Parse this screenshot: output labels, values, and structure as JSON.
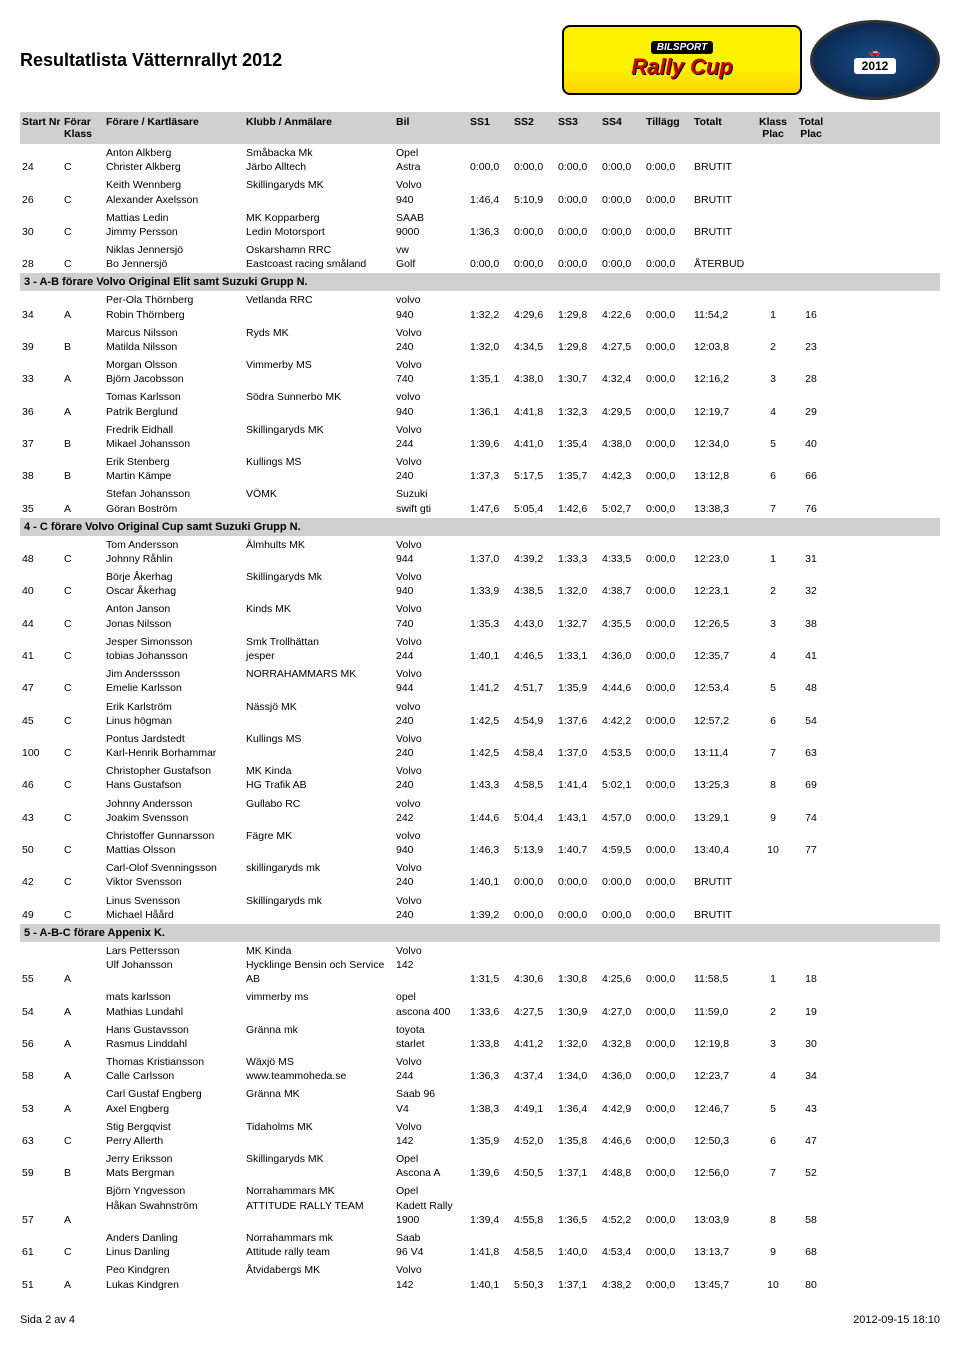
{
  "title": "Resultatlista Vätternrallyt 2012",
  "logo": {
    "top": "BILSPORT",
    "main": "Rally Cup",
    "year": "2012"
  },
  "columns": {
    "start_nr": "Start Nr",
    "forar_klass": "Förar Klass",
    "forare": "Förare / Kartläsare",
    "klubb": "Klubb / Anmälare",
    "bil": "Bil",
    "ss1": "SS1",
    "ss2": "SS2",
    "ss3": "SS3",
    "ss4": "SS4",
    "tillagg": "Tillägg",
    "totalt": "Totalt",
    "klass_plac": "Klass Plac",
    "total_plac": "Total Plac"
  },
  "sections": [
    {
      "header": null,
      "rows": [
        {
          "start": "24",
          "klass": "C",
          "forare1": "Anton Alkberg",
          "forare2": "Christer Alkberg",
          "klubb1": "Småbacka Mk",
          "klubb2": "Järbo  Alltech",
          "bil1": "Opel",
          "bil2": "Astra",
          "ss1": "0:00,0",
          "ss2": "0:00,0",
          "ss3": "0:00,0",
          "ss4": "0:00,0",
          "tillagg": "0:00,0",
          "totalt": "BRUTIT",
          "kp": "",
          "tp": ""
        },
        {
          "start": "26",
          "klass": "C",
          "forare1": "Keith Wennberg",
          "forare2": "Alexander Axelsson",
          "klubb1": "Skillingaryds MK",
          "klubb2": "",
          "bil1": "Volvo",
          "bil2": "940",
          "ss1": "1:46,4",
          "ss2": "5:10,9",
          "ss3": "0:00,0",
          "ss4": "0:00,0",
          "tillagg": "0:00,0",
          "totalt": "BRUTIT",
          "kp": "",
          "tp": ""
        },
        {
          "start": "30",
          "klass": "C",
          "forare1": "Mattias Ledin",
          "forare2": "Jimmy Persson",
          "klubb1": "MK Kopparberg",
          "klubb2": "Ledin Motorsport",
          "bil1": "SAAB",
          "bil2": "9000",
          "ss1": "1:36,3",
          "ss2": "0:00,0",
          "ss3": "0:00,0",
          "ss4": "0:00,0",
          "tillagg": "0:00,0",
          "totalt": "BRUTIT",
          "kp": "",
          "tp": ""
        },
        {
          "start": "28",
          "klass": "C",
          "forare1": "Niklas Jennersjö",
          "forare2": "Bo  Jennersjö",
          "klubb1": "Oskarshamn RRC",
          "klubb2": "Eastcoast racing småland",
          "bil1": "vw",
          "bil2": "Golf",
          "ss1": "0:00,0",
          "ss2": "0:00,0",
          "ss3": "0:00,0",
          "ss4": "0:00,0",
          "tillagg": "0:00,0",
          "totalt": "ÅTERBUD",
          "kp": "",
          "tp": ""
        }
      ]
    },
    {
      "header": "3 - A-B förare Volvo Original Elit samt Suzuki Grupp N.",
      "rows": [
        {
          "start": "34",
          "klass": "A",
          "forare1": "Per-Ola  Thörnberg",
          "forare2": "Robin  Thörnberg",
          "klubb1": "Vetlanda RRC",
          "klubb2": "",
          "bil1": "volvo",
          "bil2": "940",
          "ss1": "1:32,2",
          "ss2": "4:29,6",
          "ss3": "1:29,8",
          "ss4": "4:22,6",
          "tillagg": "0:00,0",
          "totalt": "11:54,2",
          "kp": "1",
          "tp": "16"
        },
        {
          "start": "39",
          "klass": "B",
          "forare1": "Marcus Nilsson",
          "forare2": "Matilda Nilsson",
          "klubb1": "Ryds MK",
          "klubb2": "",
          "bil1": "Volvo",
          "bil2": "240",
          "ss1": "1:32,0",
          "ss2": "4:34,5",
          "ss3": "1:29,8",
          "ss4": "4:27,5",
          "tillagg": "0:00,0",
          "totalt": "12:03,8",
          "kp": "2",
          "tp": "23"
        },
        {
          "start": "33",
          "klass": "A",
          "forare1": "Morgan  Olsson",
          "forare2": "Björn Jacobsson",
          "klubb1": "Vimmerby MS",
          "klubb2": "",
          "bil1": "Volvo",
          "bil2": "740",
          "ss1": "1:35,1",
          "ss2": "4:38,0",
          "ss3": "1:30,7",
          "ss4": "4:32,4",
          "tillagg": "0:00,0",
          "totalt": "12:16,2",
          "kp": "3",
          "tp": "28"
        },
        {
          "start": "36",
          "klass": "A",
          "forare1": "Tomas Karlsson",
          "forare2": "Patrik Berglund",
          "klubb1": "Södra Sunnerbo MK",
          "klubb2": "",
          "bil1": "volvo",
          "bil2": "940",
          "ss1": "1:36,1",
          "ss2": "4:41,8",
          "ss3": "1:32,3",
          "ss4": "4:29,5",
          "tillagg": "0:00,0",
          "totalt": "12:19,7",
          "kp": "4",
          "tp": "29"
        },
        {
          "start": "37",
          "klass": "B",
          "forare1": "Fredrik  Eidhall",
          "forare2": "Mikael Johansson",
          "klubb1": "Skillingaryds MK",
          "klubb2": "",
          "bil1": "Volvo",
          "bil2": "244",
          "ss1": "1:39,6",
          "ss2": "4:41,0",
          "ss3": "1:35,4",
          "ss4": "4:38,0",
          "tillagg": "0:00,0",
          "totalt": "12:34,0",
          "kp": "5",
          "tp": "40"
        },
        {
          "start": "38",
          "klass": "B",
          "forare1": "Erik Stenberg",
          "forare2": "Martin Kämpe",
          "klubb1": "Kullings MS",
          "klubb2": "",
          "bil1": "Volvo",
          "bil2": "240",
          "ss1": "1:37,3",
          "ss2": "5:17,5",
          "ss3": "1:35,7",
          "ss4": "4:42,3",
          "tillagg": "0:00,0",
          "totalt": "13:12,8",
          "kp": "6",
          "tp": "66"
        },
        {
          "start": "35",
          "klass": "A",
          "forare1": "Stefan Johansson",
          "forare2": "Göran Boström",
          "klubb1": "VÖMK",
          "klubb2": "",
          "bil1": "Suzuki",
          "bil2": "swift gti",
          "ss1": "1:47,6",
          "ss2": "5:05,4",
          "ss3": "1:42,6",
          "ss4": "5:02,7",
          "tillagg": "0:00,0",
          "totalt": "13:38,3",
          "kp": "7",
          "tp": "76"
        }
      ]
    },
    {
      "header": "4 - C förare Volvo Original Cup samt Suzuki Grupp N.",
      "rows": [
        {
          "start": "48",
          "klass": "C",
          "forare1": "Tom Andersson",
          "forare2": "Johnny Råhlin",
          "klubb1": "Älmhults MK",
          "klubb2": "",
          "bil1": "Volvo",
          "bil2": "944",
          "ss1": "1:37,0",
          "ss2": "4:39,2",
          "ss3": "1:33,3",
          "ss4": "4:33,5",
          "tillagg": "0:00,0",
          "totalt": "12:23,0",
          "kp": "1",
          "tp": "31"
        },
        {
          "start": "40",
          "klass": "C",
          "forare1": "Börje Åkerhag",
          "forare2": "Oscar Åkerhag",
          "klubb1": "Skillingaryds Mk",
          "klubb2": "",
          "bil1": "Volvo",
          "bil2": "940",
          "ss1": "1:33,9",
          "ss2": "4:38,5",
          "ss3": "1:32,0",
          "ss4": "4:38,7",
          "tillagg": "0:00,0",
          "totalt": "12:23,1",
          "kp": "2",
          "tp": "32"
        },
        {
          "start": "44",
          "klass": "C",
          "forare1": "Anton Janson",
          "forare2": "Jonas Nilsson",
          "klubb1": "Kinds MK",
          "klubb2": "",
          "bil1": "Volvo",
          "bil2": "740",
          "ss1": "1:35,3",
          "ss2": "4:43,0",
          "ss3": "1:32,7",
          "ss4": "4:35,5",
          "tillagg": "0:00,0",
          "totalt": "12:26,5",
          "kp": "3",
          "tp": "38"
        },
        {
          "start": "41",
          "klass": "C",
          "forare1": "Jesper Simonsson",
          "forare2": "tobias Johansson",
          "klubb1": "Smk Trollhättan",
          "klubb2": "jesper",
          "bil1": "Volvo",
          "bil2": "244",
          "ss1": "1:40,1",
          "ss2": "4:46,5",
          "ss3": "1:33,1",
          "ss4": "4:36,0",
          "tillagg": "0:00,0",
          "totalt": "12:35,7",
          "kp": "4",
          "tp": "41"
        },
        {
          "start": "47",
          "klass": "C",
          "forare1": "Jim Anderssson",
          "forare2": "Emelie Karlsson",
          "klubb1": "NORRAHAMMARS MK",
          "klubb2": "",
          "bil1": "Volvo",
          "bil2": "944",
          "ss1": "1:41,2",
          "ss2": "4:51,7",
          "ss3": "1:35,9",
          "ss4": "4:44,6",
          "tillagg": "0:00,0",
          "totalt": "12:53,4",
          "kp": "5",
          "tp": "48"
        },
        {
          "start": "45",
          "klass": "C",
          "forare1": "Erik Karlström",
          "forare2": "Linus högman",
          "klubb1": "Nässjö MK",
          "klubb2": "",
          "bil1": "volvo",
          "bil2": "240",
          "ss1": "1:42,5",
          "ss2": "4:54,9",
          "ss3": "1:37,6",
          "ss4": "4:42,2",
          "tillagg": "0:00,0",
          "totalt": "12:57,2",
          "kp": "6",
          "tp": "54"
        },
        {
          "start": "100",
          "klass": "C",
          "forare1": "Pontus Jardstedt",
          "forare2": "Karl-Henrik  Borhammar",
          "klubb1": "Kullings MS",
          "klubb2": "",
          "bil1": "Volvo",
          "bil2": "240",
          "ss1": "1:42,5",
          "ss2": "4:58,4",
          "ss3": "1:37,0",
          "ss4": "4:53,5",
          "tillagg": "0:00,0",
          "totalt": "13:11,4",
          "kp": "7",
          "tp": "63"
        },
        {
          "start": "46",
          "klass": "C",
          "forare1": "Christopher Gustafson",
          "forare2": "Hans Gustafson",
          "klubb1": "MK Kinda",
          "klubb2": "HG Trafik AB",
          "bil1": "Volvo",
          "bil2": "240",
          "ss1": "1:43,3",
          "ss2": "4:58,5",
          "ss3": "1:41,4",
          "ss4": "5:02,1",
          "tillagg": "0:00,0",
          "totalt": "13:25,3",
          "kp": "8",
          "tp": "69"
        },
        {
          "start": "43",
          "klass": "C",
          "forare1": "Johnny Andersson",
          "forare2": "Joakim Svensson",
          "klubb1": "Gullabo RC",
          "klubb2": "",
          "bil1": "volvo",
          "bil2": "242",
          "ss1": "1:44,6",
          "ss2": "5:04,4",
          "ss3": "1:43,1",
          "ss4": "4:57,0",
          "tillagg": "0:00,0",
          "totalt": "13:29,1",
          "kp": "9",
          "tp": "74"
        },
        {
          "start": "50",
          "klass": "C",
          "forare1": "Christoffer Gunnarsson",
          "forare2": "Mattias Olsson",
          "klubb1": "Fägre MK",
          "klubb2": "",
          "bil1": "volvo",
          "bil2": "940",
          "ss1": "1:46,3",
          "ss2": "5:13,9",
          "ss3": "1:40,7",
          "ss4": "4:59,5",
          "tillagg": "0:00,0",
          "totalt": "13:40,4",
          "kp": "10",
          "tp": "77"
        },
        {
          "start": "42",
          "klass": "C",
          "forare1": "Carl-Olof  Svenningsson",
          "forare2": "Viktor Svensson",
          "klubb1": "skillingaryds mk",
          "klubb2": "",
          "bil1": "Volvo",
          "bil2": "240",
          "ss1": "1:40,1",
          "ss2": "0:00,0",
          "ss3": "0:00,0",
          "ss4": "0:00,0",
          "tillagg": "0:00,0",
          "totalt": "BRUTIT",
          "kp": "",
          "tp": ""
        },
        {
          "start": "49",
          "klass": "C",
          "forare1": "Linus Svensson",
          "forare2": "Michael Håård",
          "klubb1": "Skillingaryds mk",
          "klubb2": "",
          "bil1": "Volvo",
          "bil2": "240",
          "ss1": "1:39,2",
          "ss2": "0:00,0",
          "ss3": "0:00,0",
          "ss4": "0:00,0",
          "tillagg": "0:00,0",
          "totalt": "BRUTIT",
          "kp": "",
          "tp": ""
        }
      ]
    },
    {
      "header": "5 - A-B-C förare Appenix K.",
      "rows": [
        {
          "start": "55",
          "klass": "A",
          "forare1": "Lars Pettersson",
          "forare2": "Ulf Johansson",
          "klubb1": "MK Kinda",
          "klubb2": "Hycklinge Bensin och Service AB",
          "bil1": "Volvo",
          "bil2": "142",
          "ss1": "1:31,5",
          "ss2": "4:30,6",
          "ss3": "1:30,8",
          "ss4": "4:25,6",
          "tillagg": "0:00,0",
          "totalt": "11:58,5",
          "kp": "1",
          "tp": "18"
        },
        {
          "start": "54",
          "klass": "A",
          "forare1": "mats karlsson",
          "forare2": "Mathias Lundahl",
          "klubb1": "vimmerby ms",
          "klubb2": "",
          "bil1": "opel",
          "bil2": "ascona 400",
          "ss1": "1:33,6",
          "ss2": "4:27,5",
          "ss3": "1:30,9",
          "ss4": "4:27,0",
          "tillagg": "0:00,0",
          "totalt": "11:59,0",
          "kp": "2",
          "tp": "19"
        },
        {
          "start": "56",
          "klass": "A",
          "forare1": "Hans Gustavsson",
          "forare2": "Rasmus Linddahl",
          "klubb1": "Gränna mk",
          "klubb2": "",
          "bil1": "toyota",
          "bil2": "starlet",
          "ss1": "1:33,8",
          "ss2": "4:41,2",
          "ss3": "1:32,0",
          "ss4": "4:32,8",
          "tillagg": "0:00,0",
          "totalt": "12:19,8",
          "kp": "3",
          "tp": "30"
        },
        {
          "start": "58",
          "klass": "A",
          "forare1": "Thomas  Kristiansson",
          "forare2": "Calle Carlsson",
          "klubb1": "Wäxjö MS",
          "klubb2": "www.teammoheda.se",
          "bil1": "Volvo",
          "bil2": "244",
          "ss1": "1:36,3",
          "ss2": "4:37,4",
          "ss3": "1:34,0",
          "ss4": "4:36,0",
          "tillagg": "0:00,0",
          "totalt": "12:23,7",
          "kp": "4",
          "tp": "34"
        },
        {
          "start": "53",
          "klass": "A",
          "forare1": "Carl Gustaf Engberg",
          "forare2": "Axel  Engberg",
          "klubb1": "Gränna MK",
          "klubb2": "",
          "bil1": "Saab 96",
          "bil2": "V4",
          "ss1": "1:38,3",
          "ss2": "4:49,1",
          "ss3": "1:36,4",
          "ss4": "4:42,9",
          "tillagg": "0:00,0",
          "totalt": "12:46,7",
          "kp": "5",
          "tp": "43"
        },
        {
          "start": "63",
          "klass": "C",
          "forare1": "Stig Bergqvist",
          "forare2": "Perry Allerth",
          "klubb1": "Tidaholms MK",
          "klubb2": "",
          "bil1": "Volvo",
          "bil2": "142",
          "ss1": "1:35,9",
          "ss2": "4:52,0",
          "ss3": "1:35,8",
          "ss4": "4:46,6",
          "tillagg": "0:00,0",
          "totalt": "12:50,3",
          "kp": "6",
          "tp": "47"
        },
        {
          "start": "59",
          "klass": "B",
          "forare1": "Jerry Eriksson",
          "forare2": "Mats Bergman",
          "klubb1": "Skillingaryds MK",
          "klubb2": "",
          "bil1": "Opel",
          "bil2": "Ascona A",
          "ss1": "1:39,6",
          "ss2": "4:50,5",
          "ss3": "1:37,1",
          "ss4": "4:48,8",
          "tillagg": "0:00,0",
          "totalt": "12:56,0",
          "kp": "7",
          "tp": "52"
        },
        {
          "start": "57",
          "klass": "A",
          "forare1": "Björn Yngvesson",
          "forare2": "Håkan Swahnström",
          "klubb1": "Norrahammars MK",
          "klubb2": "ATTITUDE RALLY TEAM",
          "bil1": "Opel",
          "bil2": "Kadett Rally 1900",
          "ss1": "1:39,4",
          "ss2": "4:55,8",
          "ss3": "1:36,5",
          "ss4": "4:52,2",
          "tillagg": "0:00,0",
          "totalt": "13:03,9",
          "kp": "8",
          "tp": "58"
        },
        {
          "start": "61",
          "klass": "C",
          "forare1": "Anders  Danling",
          "forare2": "Linus  Danling",
          "klubb1": "Norrahammars mk",
          "klubb2": "Attitude rally team",
          "bil1": "Saab",
          "bil2": "96 V4",
          "ss1": "1:41,8",
          "ss2": "4:58,5",
          "ss3": "1:40,0",
          "ss4": "4:53,4",
          "tillagg": "0:00,0",
          "totalt": "13:13,7",
          "kp": "9",
          "tp": "68"
        },
        {
          "start": "51",
          "klass": "A",
          "forare1": "Peo Kindgren",
          "forare2": "Lukas Kindgren",
          "klubb1": "Åtvidabergs MK",
          "klubb2": "",
          "bil1": "Volvo",
          "bil2": "142",
          "ss1": "1:40,1",
          "ss2": "5:50,3",
          "ss3": "1:37,1",
          "ss4": "4:38,2",
          "tillagg": "0:00,0",
          "totalt": "13:45,7",
          "kp": "10",
          "tp": "80"
        }
      ]
    }
  ],
  "footer": {
    "left": "Sida 2 av 4",
    "right": "2012-09-15 18:10"
  },
  "colors": {
    "header_bg": "#d0d0d0",
    "text": "#000000",
    "page_bg": "#ffffff"
  }
}
